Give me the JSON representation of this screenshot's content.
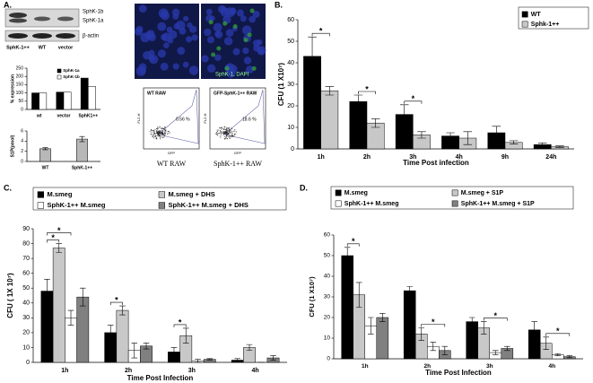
{
  "panel_a": {
    "label": "A.",
    "blot": {
      "bands": [
        "SphK-1b",
        "SphK-1a"
      ],
      "loading": "β-actin",
      "lanes": [
        "SphK-1++",
        "WT",
        "vector"
      ]
    },
    "microscopy_caption": "SphK-1, DAPI",
    "flow": [
      {
        "title": "WT RAW",
        "gate": "0.56 %",
        "caption": "WT RAW",
        "x_axis": "GFP",
        "y_axis": "FL2-H"
      },
      {
        "title": "GFP-SphK-1++ RAW",
        "gate": "18.6 %",
        "caption": "SphK-1++ RAW",
        "x_axis": "GFP",
        "y_axis": "FL2-H"
      }
    ]
  },
  "chart_data": [
    {
      "type": "bar",
      "y_label": "% expression",
      "categories": [
        "wt",
        "vector",
        "SphK1++"
      ],
      "series": [
        {
          "name": "SphK-1a",
          "color": "#000000",
          "values": [
            100,
            105,
            190
          ]
        },
        {
          "name": "SphK-1b",
          "color": "#ffffff",
          "values": [
            100,
            105,
            140
          ]
        }
      ],
      "ylim": [
        0,
        250
      ],
      "yticks": [
        0,
        50,
        100,
        150,
        200,
        250
      ]
    },
    {
      "type": "bar",
      "y_label": "S1P(pmol)",
      "categories": [
        "WT",
        "SphK-1++"
      ],
      "series": [
        {
          "color": "#b8b8b8",
          "values": [
            2.5,
            4.4
          ],
          "errors": [
            0.2,
            0.5
          ]
        }
      ],
      "ylim": [
        0,
        6
      ],
      "yticks": [
        0,
        2,
        4,
        6
      ]
    },
    {
      "type": "bar",
      "panel_label": "B.",
      "y_label": "CFU (1 X10⁷)",
      "x_label": "Time Post infection",
      "significance_marker": "*",
      "categories": [
        "1h",
        "2h",
        "3h",
        "4h",
        "9h",
        "24h"
      ],
      "series": [
        {
          "name": "WT",
          "color": "#000000",
          "values": [
            43,
            22,
            16,
            6,
            7.5,
            2
          ],
          "errors": [
            9,
            3,
            4.5,
            1.5,
            3,
            0.8
          ]
        },
        {
          "name": "Sphk-1++",
          "color": "#c8c8c8",
          "values": [
            27,
            12,
            6.5,
            5,
            3,
            1
          ],
          "errors": [
            2,
            2,
            1.5,
            3,
            0.8,
            0.4
          ]
        }
      ],
      "ylim": [
        0,
        60
      ],
      "yticks": [
        0,
        10,
        20,
        30,
        40,
        50,
        60
      ]
    },
    {
      "type": "bar",
      "panel_label": "C.",
      "y_label": "CFU ( 1X 10⁷)",
      "x_label": "Time Post Infection",
      "significance_marker": "*",
      "categories": [
        "1h",
        "2h",
        "3h",
        "4h"
      ],
      "series": [
        {
          "name": "M.smeg",
          "color": "#000000",
          "values": [
            48,
            20,
            7,
            1.5
          ],
          "errors": [
            8,
            5,
            3,
            1
          ]
        },
        {
          "name": "M.smeg + DHS",
          "color": "#c8c8c8",
          "values": [
            77,
            35,
            18,
            10
          ],
          "errors": [
            3,
            3,
            5,
            2
          ]
        },
        {
          "name": "SphK-1++ M.smeg",
          "color": "#ffffff",
          "values": [
            30,
            8,
            1,
            0
          ],
          "errors": [
            5,
            5,
            1,
            0
          ]
        },
        {
          "name": "SphK-1++ M.smeg + DHS",
          "color": "#808080",
          "values": [
            44,
            11,
            2,
            3
          ],
          "errors": [
            6,
            2,
            0.5,
            1.5
          ]
        }
      ],
      "ylim": [
        0,
        90
      ],
      "yticks": [
        0,
        10,
        20,
        30,
        40,
        50,
        60,
        70,
        80,
        90
      ]
    },
    {
      "type": "bar",
      "panel_label": "D.",
      "y_label": "CFU (1 X10⁷)",
      "x_label": "Time Post Infection",
      "significance_marker": "*",
      "categories": [
        "1h",
        "2h",
        "3h",
        "4h"
      ],
      "series": [
        {
          "name": "M.smeg",
          "color": "#000000",
          "values": [
            50,
            33,
            18,
            14
          ],
          "errors": [
            4,
            2,
            2,
            4
          ]
        },
        {
          "name": "M.smeg + S1P",
          "color": "#c8c8c8",
          "values": [
            31,
            12,
            15,
            7.5
          ],
          "errors": [
            6,
            3,
            3,
            3
          ]
        },
        {
          "name": "SphK-1++ M.smeg",
          "color": "#ffffff",
          "values": [
            16,
            6,
            3,
            2
          ],
          "errors": [
            4,
            2,
            1,
            0.5
          ]
        },
        {
          "name": "SphK-1++ M.smeg + S1P",
          "color": "#808080",
          "values": [
            20,
            4,
            5,
            1
          ],
          "errors": [
            2,
            2,
            1,
            0.5
          ]
        }
      ],
      "ylim": [
        0,
        60
      ],
      "yticks": [
        0,
        10,
        20,
        30,
        40,
        50,
        60
      ]
    }
  ]
}
